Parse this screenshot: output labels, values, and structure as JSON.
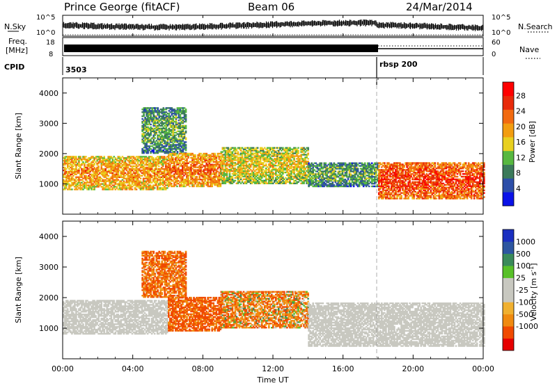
{
  "header": {
    "station": "Prince George (fitACF)",
    "beam": "Beam 06",
    "date": "24/Mar/2014"
  },
  "side_labels": {
    "nsky": "N.Sky",
    "freq_top": "Freq.",
    "freq_unit": "[MHz]",
    "cpid": "CPID",
    "nsearch": "N.Search",
    "nave": "Nave"
  },
  "strips": {
    "nsky_ticks": [
      "10^5",
      "10^0"
    ],
    "nsearch_ticks": [
      "10^5",
      "10^0"
    ],
    "freq_ticks": [
      "18",
      "8"
    ],
    "nave_ticks": [
      "60",
      "0"
    ],
    "cpid_segments": [
      {
        "label": "3503",
        "start": "00:00"
      },
      {
        "label": "rbsp 200",
        "start": "18:00"
      }
    ]
  },
  "colors": {
    "power": [
      "#0a12e8",
      "#2d4fa8",
      "#3b7a5a",
      "#57b840",
      "#e8d020",
      "#f29d10",
      "#f26a10",
      "#e82a0a",
      "#ff0000"
    ],
    "velocity": [
      "#e60000",
      "#f04a00",
      "#f08a10",
      "#f0b030",
      "#c8c8c0",
      "#c8c8c0",
      "#58c028",
      "#3a8a5a",
      "#2d56a0",
      "#1a2fc0"
    ]
  },
  "chart_data": [
    {
      "type": "heatmap",
      "quantity": "Power",
      "xlabel": "",
      "ylabel": "Slant Range [km]",
      "ylim": [
        0,
        4500
      ],
      "yticks": [
        1000,
        2000,
        3000,
        4000
      ],
      "xlim_hours": [
        0,
        24
      ],
      "colorbar": {
        "label": "Power [dB]",
        "ticks": [
          4,
          8,
          12,
          16,
          20,
          24,
          28
        ]
      },
      "echo_regions": [
        {
          "t_start": "00:00",
          "t_end": "06:00",
          "range_km": [
            800,
            1900
          ],
          "power_db": 24
        },
        {
          "t_start": "04:30",
          "t_end": "07:00",
          "range_km": [
            2000,
            3500
          ],
          "power_db": 14
        },
        {
          "t_start": "06:00",
          "t_end": "09:00",
          "range_km": [
            900,
            2000
          ],
          "power_db": 26
        },
        {
          "t_start": "09:00",
          "t_end": "14:00",
          "range_km": [
            1000,
            2200
          ],
          "power_db": 20
        },
        {
          "t_start": "14:00",
          "t_end": "18:00",
          "range_km": [
            900,
            1700
          ],
          "power_db": 14
        },
        {
          "t_start": "18:00",
          "t_end": "24:00",
          "range_km": [
            500,
            1700
          ],
          "power_db": 30
        }
      ]
    },
    {
      "type": "heatmap",
      "quantity": "Velocity",
      "xlabel": "Time UT",
      "ylabel": "Slant Range [km]",
      "ylim": [
        0,
        4500
      ],
      "yticks": [
        1000,
        2000,
        3000,
        4000
      ],
      "xlim_hours": [
        0,
        24
      ],
      "xtick_labels": [
        "00:00",
        "04:00",
        "08:00",
        "12:00",
        "16:00",
        "20:00",
        "00:00"
      ],
      "colorbar": {
        "label": "Velocity [m s^-1]",
        "ticks": [
          "1000",
          "500",
          "100",
          "25",
          "-25",
          "-100",
          "-500",
          "-1000"
        ]
      },
      "echo_regions": [
        {
          "t_start": "00:00",
          "t_end": "06:00",
          "range_km": [
            800,
            1900
          ],
          "velocity": 0
        },
        {
          "t_start": "04:30",
          "t_end": "07:00",
          "range_km": [
            2000,
            3500
          ],
          "velocity": -300
        },
        {
          "t_start": "06:00",
          "t_end": "09:00",
          "range_km": [
            900,
            2000
          ],
          "velocity": -400
        },
        {
          "t_start": "09:00",
          "t_end": "14:00",
          "range_km": [
            1000,
            2200
          ],
          "velocity": -200
        },
        {
          "t_start": "14:00",
          "t_end": "24:00",
          "range_km": [
            400,
            1800
          ],
          "velocity": 0
        }
      ]
    }
  ]
}
